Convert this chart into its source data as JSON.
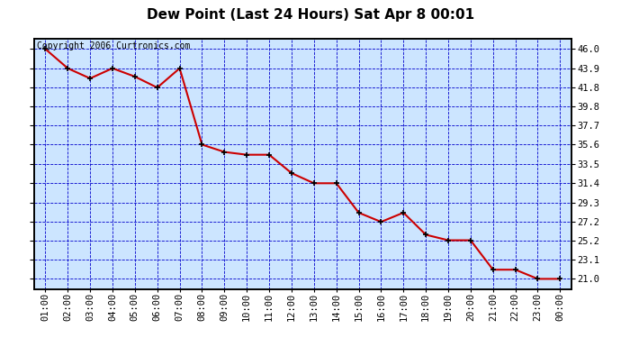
{
  "title": "Dew Point (Last 24 Hours) Sat Apr 8 00:01",
  "copyright": "Copyright 2006 Curtronics.com",
  "x_labels": [
    "01:00",
    "02:00",
    "03:00",
    "04:00",
    "05:00",
    "06:00",
    "07:00",
    "08:00",
    "09:00",
    "10:00",
    "11:00",
    "12:00",
    "13:00",
    "14:00",
    "15:00",
    "16:00",
    "17:00",
    "18:00",
    "19:00",
    "20:00",
    "21:00",
    "22:00",
    "23:00",
    "00:00"
  ],
  "x_values": [
    1,
    2,
    3,
    4,
    5,
    6,
    7,
    8,
    9,
    10,
    11,
    12,
    13,
    14,
    15,
    16,
    17,
    18,
    19,
    20,
    21,
    22,
    23,
    24
  ],
  "y_values": [
    46.0,
    43.9,
    42.8,
    43.9,
    43.0,
    41.8,
    43.9,
    35.6,
    34.8,
    34.5,
    34.5,
    32.5,
    31.4,
    31.4,
    28.2,
    27.2,
    28.2,
    25.8,
    25.2,
    25.2,
    22.0,
    22.0,
    21.0,
    21.0
  ],
  "y_ticks": [
    21.0,
    23.1,
    25.2,
    27.2,
    29.3,
    31.4,
    33.5,
    35.6,
    37.7,
    39.8,
    41.8,
    43.9,
    46.0
  ],
  "ylim_min": 19.9,
  "ylim_max": 47.1,
  "xlim_min": 0.5,
  "xlim_max": 24.5,
  "line_color": "#cc0000",
  "marker_color": "#000000",
  "bg_color": "#cce5ff",
  "outer_bg_color": "#ffffff",
  "grid_color": "#0000cc",
  "border_color": "#000000",
  "title_fontsize": 11,
  "copyright_fontsize": 7,
  "tick_fontsize": 7.5
}
